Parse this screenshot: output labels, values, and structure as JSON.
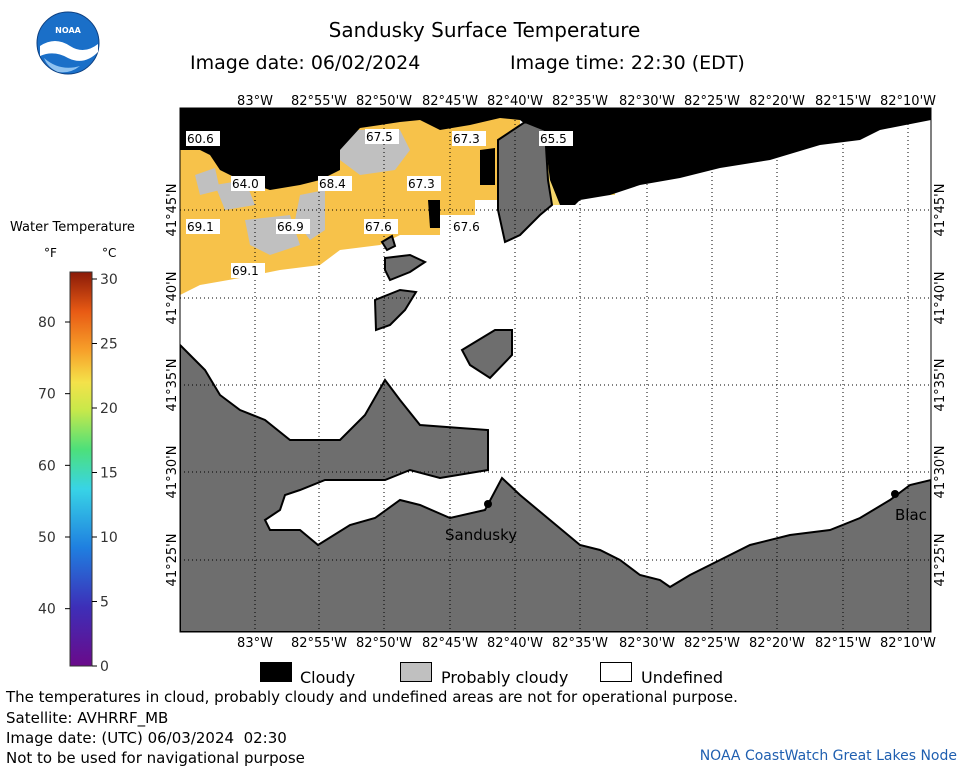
{
  "header": {
    "title": "Sandusky Surface Temperature",
    "image_date": "Image date: 06/02/2024",
    "image_time": "Image time: 22:30 (EDT)"
  },
  "logo": {
    "text": "NOAA",
    "color": "#1a6fc8"
  },
  "colorbar": {
    "title": "Water Temperature",
    "unit_f": "°F",
    "unit_c": "°C",
    "f_ticks": [
      "80",
      "70",
      "60",
      "50",
      "40"
    ],
    "c_ticks": [
      "30",
      "25",
      "20",
      "15",
      "10",
      "5",
      "0"
    ],
    "range_c": [
      0,
      30
    ]
  },
  "map": {
    "lon_labels": [
      "83°W",
      "82°55'W",
      "82°50'W",
      "82°45'W",
      "82°40'W",
      "82°35'W",
      "82°30'W",
      "82°25'W",
      "82°20'W",
      "82°15'W",
      "82°10'W"
    ],
    "lat_labels": [
      "41°45'N",
      "41°40'N",
      "41°35'N",
      "41°30'N",
      "41°25'N"
    ],
    "temperature_labels": [
      "60.6",
      "67.5",
      "67.3",
      "65.5",
      "64.0",
      "68.4",
      "67.3",
      "69.1",
      "66.9",
      "67.6",
      "67.6",
      "69.1"
    ],
    "places": [
      "Sandusky",
      "Blac"
    ],
    "colors": {
      "land": "#6e6e6e",
      "cloud": "#000000",
      "probably_cloudy": "#c0c0c0",
      "undefined": "#ffffff",
      "water_warm": "#f7c24a"
    }
  },
  "key": {
    "cloudy": "Cloudy",
    "probably_cloudy": "Probably cloudy",
    "undefined": "Undefined"
  },
  "footer": {
    "note": "The temperatures in cloud, probably cloudy and undefined areas are not for operational purpose.",
    "satellite": "Satellite: AVHRRF_MB",
    "utc_date": "Image date: (UTC) 06/03/2024  02:30",
    "navigation": "Not to be used for navigational purpose",
    "credit": "NOAA CoastWatch Great Lakes Node"
  }
}
